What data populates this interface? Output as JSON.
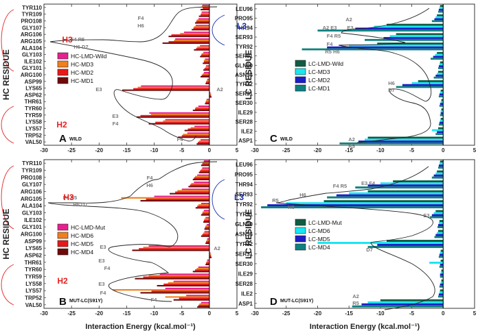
{
  "chart_data": [
    {
      "id": "A",
      "type": "bar",
      "orientation": "horizontal",
      "panel_letter": "A",
      "panel_tag": "WILD",
      "ylabel": "HC RESIDUE",
      "xlabel": "",
      "xlim": [
        -30,
        5
      ],
      "xticks": [
        "-30",
        "-25",
        "-20",
        "-15",
        "-10",
        "-5",
        "0",
        "5"
      ],
      "categories": [
        "TYR110",
        "TYR109",
        "PRO108",
        "GLY107",
        "ARG106",
        "ARG105",
        "ALA104",
        "GLY103",
        "ILE102",
        "GLY101",
        "ARG100",
        "ASP99",
        "LYS65",
        "ASP62",
        "THR61",
        "TYR60",
        "TYR59",
        "LYS58",
        "LYS57",
        "TRP52",
        "VAL50"
      ],
      "series": [
        {
          "name": "HC-LMD-Wild",
          "color": "#e8208f",
          "values": [
            -1.3,
            -1.4,
            -2.0,
            -2.5,
            -4.6,
            -6.2,
            -1.7,
            -1.1,
            -0.8,
            -0.6,
            -1.0,
            -0.4,
            -12.4,
            0.2,
            -0.5,
            -2.0,
            -10.9,
            -8.0,
            -2.7,
            -4.0,
            -1.6
          ]
        },
        {
          "name": "HC-MD3",
          "color": "#f07f1d",
          "values": [
            -1.4,
            -1.5,
            -2.3,
            -2.8,
            -5.3,
            -6.4,
            -2.2,
            -1.4,
            -1.0,
            -0.7,
            -1.2,
            -0.5,
            -13.0,
            0.3,
            -0.6,
            -2.5,
            -10.6,
            -8.4,
            -3.4,
            -4.8,
            -1.9
          ]
        },
        {
          "name": "HC-MD2",
          "color": "#e81818",
          "values": [
            -1.2,
            -1.6,
            -2.4,
            -2.9,
            -6.9,
            -7.4,
            -2.4,
            -1.5,
            -1.0,
            -0.9,
            -1.4,
            -0.6,
            -13.8,
            0.3,
            -0.7,
            -2.6,
            -12.5,
            -9.8,
            -3.9,
            -5.0,
            -2.1
          ]
        },
        {
          "name": "HC-MD1",
          "color": "#6e0a0a",
          "values": [
            -1.6,
            -1.9,
            -2.6,
            -3.2,
            -7.4,
            -8.5,
            -2.8,
            -1.7,
            -1.2,
            -1.1,
            -1.6,
            -0.7,
            -15.8,
            0.4,
            -0.8,
            -3.0,
            -13.2,
            -11.0,
            -4.5,
            -5.7,
            -2.3
          ]
        }
      ],
      "groups": [
        {
          "label": "H3",
          "color": "#e82020"
        },
        {
          "label": "H2",
          "color": "#e82020"
        }
      ],
      "annotations": [
        "F4",
        "H6",
        "F4 R5",
        "H6 D7",
        "E3",
        "A2",
        "E3",
        "F4",
        "F4"
      ]
    },
    {
      "id": "B",
      "type": "bar",
      "orientation": "horizontal",
      "panel_letter": "B",
      "panel_tag": "MUT-LC(S91Y)",
      "ylabel": "HC RESIDUE",
      "xlabel": "Interaction Energy (kcal.mol⁻¹)",
      "xlim": [
        -30,
        5
      ],
      "xticks": [
        "-30",
        "-25",
        "-20",
        "-15",
        "-10",
        "-5",
        "0",
        "5"
      ],
      "categories": [
        "TYR110",
        "TYR109",
        "PRO108",
        "GLY107",
        "ARG106",
        "ARG105",
        "ALA104",
        "GLY103",
        "ILE102",
        "GLY101",
        "ARG100",
        "ASP99",
        "LYS65",
        "ASP62",
        "THR61",
        "TYR60",
        "TYR59",
        "LYS58",
        "LYS57",
        "TRP52",
        "VAL50"
      ],
      "series": [
        {
          "name": "HC-LMD-Mut",
          "color": "#e8208f",
          "values": [
            -1.0,
            -1.3,
            -2.2,
            -2.8,
            -5.0,
            -10.0,
            -1.5,
            -1.0,
            -0.7,
            -0.5,
            -0.9,
            -0.4,
            -11.0,
            0.2,
            -0.4,
            -2.0,
            -9.0,
            -6.5,
            -8.0,
            -4.2,
            -1.5
          ]
        },
        {
          "name": "HC-MD6",
          "color": "#f07f1d",
          "values": [
            -1.2,
            -1.5,
            -2.6,
            -3.3,
            -5.8,
            -16.0,
            -2.0,
            -1.2,
            -0.9,
            -0.7,
            -1.1,
            -0.5,
            -12.0,
            0.3,
            -0.5,
            -2.3,
            -11.0,
            -7.5,
            -17.5,
            -8.0,
            -1.8
          ]
        },
        {
          "name": "HC-MD5",
          "color": "#e81818",
          "values": [
            -1.3,
            -1.7,
            -2.8,
            -3.5,
            -6.2,
            -11.5,
            -2.2,
            -1.3,
            -1.0,
            -0.8,
            -1.3,
            -0.6,
            -12.8,
            0.3,
            -0.6,
            -2.6,
            -12.0,
            -8.3,
            -10.5,
            -5.5,
            -2.0
          ]
        },
        {
          "name": "HC-MD4",
          "color": "#6e0a0a",
          "values": [
            -1.5,
            -1.9,
            -3.0,
            -3.8,
            -7.2,
            -12.5,
            -2.5,
            -1.5,
            -1.1,
            -0.9,
            -1.5,
            -0.7,
            -14.0,
            0.4,
            -0.7,
            -3.0,
            -13.5,
            -9.5,
            -12.5,
            -6.5,
            -2.2
          ]
        }
      ],
      "groups": [
        {
          "label": "H3",
          "color": "#e82020"
        },
        {
          "label": "H2",
          "color": "#e82020"
        }
      ],
      "annotations": [
        "F4",
        "H6",
        "F4 R5",
        "H6 D7",
        "E3",
        "A2",
        "E3",
        "F4",
        "E3",
        "F4",
        "F4"
      ]
    },
    {
      "id": "C",
      "type": "bar",
      "orientation": "horizontal",
      "panel_letter": "C",
      "panel_tag": "WILD",
      "ylabel": "LC RESIDUE",
      "xlabel": "",
      "xlim": [
        -30,
        5
      ],
      "xticks": [
        "-30",
        "-25",
        "-20",
        "-15",
        "-10",
        "-5",
        "0",
        "5"
      ],
      "categories": [
        "LEU96",
        "PRO95",
        "THR94",
        "SER93",
        "TYR92",
        "SER91",
        "GLN90",
        "ASN34",
        "TYR32",
        "SER31",
        "SER30",
        "ILE29",
        "SER28",
        "ILE2",
        "ASP1"
      ],
      "series": [
        {
          "name": "LC-LMD-Wild",
          "color": "#0f5c43",
          "values": [
            -0.5,
            -1.0,
            -9.0,
            -7.5,
            -10.5,
            -1.0,
            -0.5,
            -0.8,
            -4.0,
            -0.4,
            -0.3,
            -0.3,
            -0.4,
            -0.8,
            -12.0
          ]
        },
        {
          "name": "LC-MD3",
          "color": "#1ae6f0",
          "values": [
            -0.6,
            -1.2,
            -11.0,
            -8.5,
            -15.0,
            -1.3,
            -0.6,
            -1.0,
            -5.0,
            -0.5,
            -0.4,
            -0.4,
            -0.5,
            -1.8,
            -12.5
          ]
        },
        {
          "name": "LC-MD2",
          "color": "#1d1dc8",
          "values": [
            -0.7,
            -1.4,
            -14.0,
            -9.5,
            -18.5,
            -1.6,
            -0.7,
            -1.2,
            -6.5,
            -0.6,
            -0.5,
            -0.4,
            -0.6,
            -1.0,
            -13.5
          ]
        },
        {
          "name": "LC-MD1",
          "color": "#0f8082",
          "values": [
            -0.8,
            -1.8,
            -20.0,
            -12.5,
            -22.5,
            -2.0,
            -0.8,
            -1.5,
            -7.5,
            -0.7,
            -0.6,
            -0.5,
            -0.7,
            -1.2,
            -16.5
          ]
        }
      ],
      "groups": [
        {
          "label": "L3",
          "color": "#1a2fae"
        }
      ],
      "annotations": [
        "A2",
        "A2 E3",
        "E3",
        "F4 R5",
        "F4",
        "R5 H6",
        "H6",
        "D7",
        "A2",
        "R5"
      ]
    },
    {
      "id": "D",
      "type": "bar",
      "orientation": "horizontal",
      "panel_letter": "D",
      "panel_tag": "MUT-LC(S91Y)",
      "ylabel": "LC RESIDUE",
      "xlabel": "Interaction Energy (kcal.mol⁻¹)",
      "xlim": [
        -30,
        5
      ],
      "xticks": [
        "-30",
        "-25",
        "-20",
        "-15",
        "-10",
        "-5",
        "0",
        "5"
      ],
      "categories": [
        "LEU96",
        "PRO95",
        "THR94",
        "SER93",
        "TYR92",
        "TYR91",
        "GLN90",
        "ASN34",
        "TYR32",
        "SER31",
        "SER30",
        "ILE29",
        "SER28",
        "ILE2",
        "ASP1"
      ],
      "series": [
        {
          "name": "LC-LMD-Mut",
          "color": "#0f5c43",
          "values": [
            -0.5,
            -1.0,
            -8.0,
            -12.0,
            -19.0,
            -1.2,
            -0.6,
            -0.8,
            -9.0,
            -0.4,
            -0.4,
            -0.3,
            -0.3,
            -0.5,
            -10.0
          ]
        },
        {
          "name": "LC-MD6",
          "color": "#1ae6f0",
          "values": [
            -0.6,
            -1.2,
            -10.0,
            -15.0,
            -25.0,
            -1.5,
            -0.7,
            -1.0,
            -20.0,
            -0.5,
            -2.2,
            -0.4,
            -0.4,
            -0.6,
            -12.0
          ]
        },
        {
          "name": "LC-MD5",
          "color": "#1d1dc8",
          "values": [
            -0.7,
            -1.5,
            -12.0,
            -17.0,
            -28.0,
            -1.8,
            -0.8,
            -1.2,
            -10.5,
            -0.6,
            -0.5,
            -0.5,
            -0.5,
            -0.7,
            -13.0
          ]
        },
        {
          "name": "LC-MD4",
          "color": "#0f8082",
          "values": [
            -0.8,
            -1.8,
            -14.0,
            -18.5,
            -29.0,
            -2.1,
            -0.9,
            -1.4,
            -12.0,
            -0.7,
            -0.6,
            -0.5,
            -0.6,
            -0.8,
            -14.5
          ]
        }
      ],
      "groups": [
        {
          "label": "L3",
          "color": "#1a2fae"
        }
      ],
      "annotations": [
        "F4 R5",
        "E3 F4",
        "H6",
        "R5",
        "H6",
        "E3",
        "D7",
        "A2",
        "R5"
      ]
    }
  ]
}
